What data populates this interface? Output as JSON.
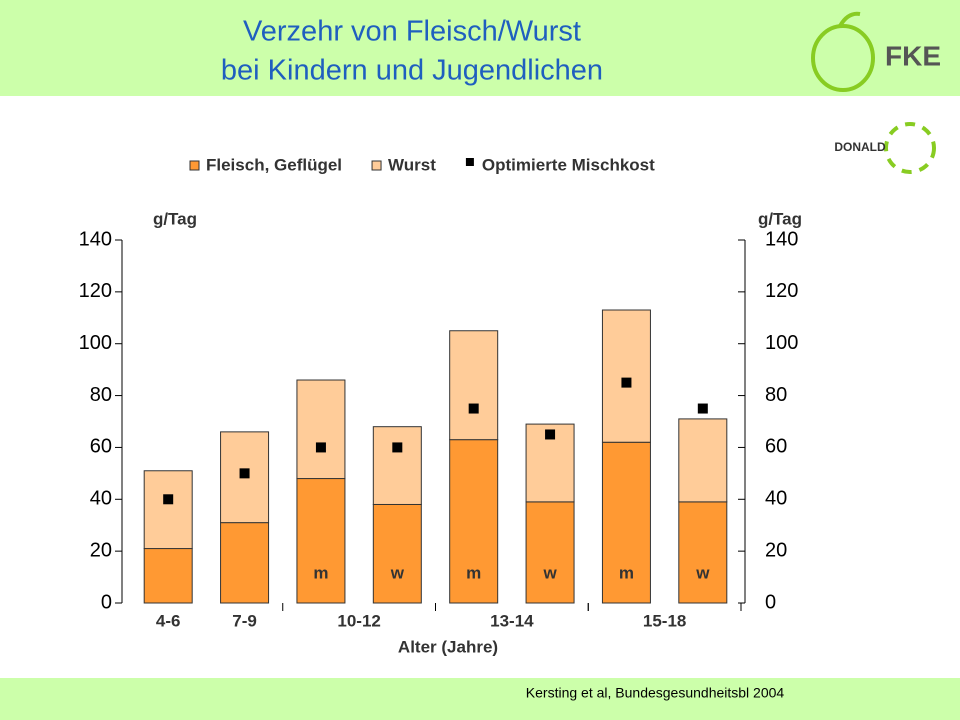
{
  "chart_data": {
    "type": "bar",
    "stacked": true,
    "title": [
      "Verzehr von Fleisch/Wurst",
      "bei Kindern und Jugendlichen"
    ],
    "groups": [
      "4-6",
      "7-9",
      "10-12",
      "13-14",
      "15-18"
    ],
    "categories": [
      null,
      null,
      "m",
      "w",
      "m",
      "w",
      "m",
      "w"
    ],
    "series": [
      {
        "name": "Fleisch, Geflügel",
        "color": "#ff9933",
        "type": "bar",
        "values": [
          21,
          31,
          48,
          38,
          63,
          39,
          62,
          39
        ]
      },
      {
        "name": "Wurst",
        "color": "#ffcc99",
        "type": "bar",
        "values": [
          30,
          35,
          38,
          30,
          42,
          30,
          51,
          32
        ]
      },
      {
        "name": "Optimierte Mischkost",
        "color": "#000000",
        "type": "scatter",
        "values": [
          40,
          50,
          60,
          60,
          75,
          65,
          85,
          75
        ]
      }
    ],
    "ylabel": "g/Tag",
    "y2label": "g/Tag",
    "xlabel": "Alter (Jahre)",
    "ylim": [
      0,
      140
    ],
    "yticks": [
      0,
      20,
      40,
      60,
      80,
      100,
      120,
      140
    ],
    "y2lim": [
      0,
      140
    ],
    "y2ticks": [
      0,
      20,
      40,
      60,
      80,
      100,
      120,
      140
    ],
    "source": "Kersting et al, Bundesgesundheitsbl 2004",
    "logos": [
      "FKE",
      "DONALD"
    ]
  }
}
